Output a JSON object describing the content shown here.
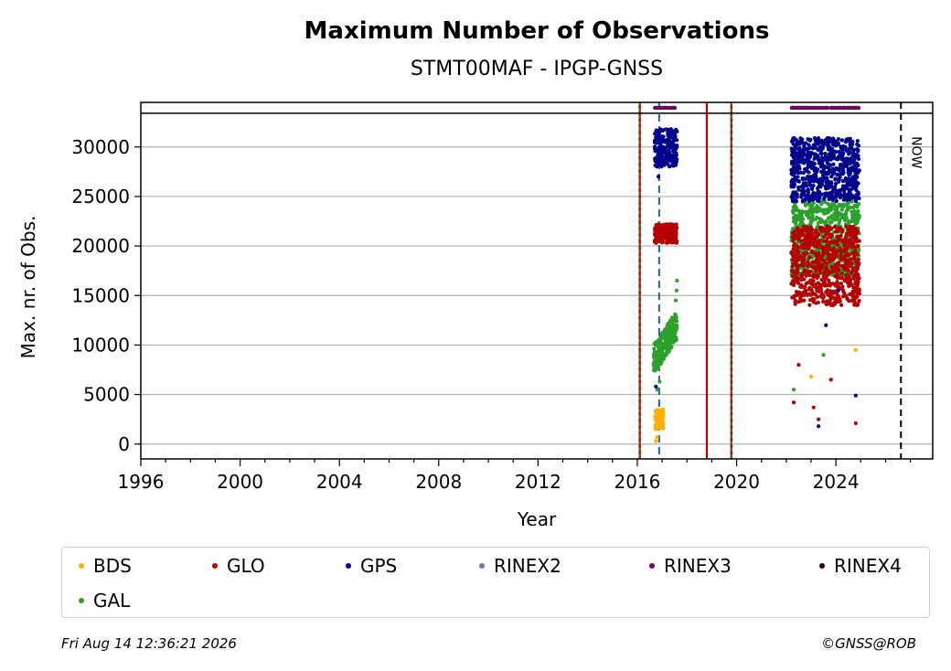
{
  "chart_data": {
    "type": "scatter",
    "title": "Maximum Number of Observations",
    "subtitle": "STMT00MAF - IPGP-GNSS",
    "xlabel": "Year",
    "ylabel": "Max. nr. of Obs.",
    "xlim": [
      1996,
      2027.9
    ],
    "ylim": [
      -1500,
      34500
    ],
    "xticks": [
      1996,
      2000,
      2004,
      2008,
      2012,
      2016,
      2020,
      2024
    ],
    "yticks": [
      0,
      5000,
      10000,
      15000,
      20000,
      25000,
      30000
    ],
    "grid": "horizontal",
    "top_band_value": 33400,
    "now_label": "NOW",
    "now_year": 2026.62,
    "vlines": [
      {
        "x": 2016.1,
        "style": "red-green-dotted"
      },
      {
        "x": 2016.88,
        "style": "blue-dashed"
      },
      {
        "x": 2018.8,
        "style": "red-solid"
      },
      {
        "x": 2019.79,
        "style": "red-green-dotted"
      },
      {
        "x": 2026.62,
        "style": "black-dashed"
      }
    ],
    "series": [
      {
        "name": "BDS",
        "color": "#ffb000",
        "segments": [
          {
            "x": [
              2016.7,
              2017.05
            ],
            "y": [
              1500,
              3500
            ]
          }
        ],
        "extra": [
          [
            2016.75,
            300
          ],
          [
            2016.8,
            700
          ],
          [
            2023.0,
            6800
          ],
          [
            2024.8,
            9500
          ]
        ]
      },
      {
        "name": "GLO",
        "color": "#b30000",
        "segments": [
          {
            "x": [
              2016.7,
              2017.6
            ],
            "y": [
              20300,
              22200
            ]
          },
          {
            "x": [
              2022.2,
              2024.95
            ],
            "y": [
              14000,
              22000
            ]
          }
        ],
        "extra": [
          [
            2022.3,
            4200
          ],
          [
            2023.1,
            3700
          ],
          [
            2023.3,
            2500
          ],
          [
            2024.8,
            2100
          ],
          [
            2022.5,
            8000
          ],
          [
            2023.8,
            6500
          ]
        ]
      },
      {
        "name": "GPS",
        "color": "#00008b",
        "segments": [
          {
            "x": [
              2016.7,
              2017.6
            ],
            "y": [
              28000,
              31800
            ]
          },
          {
            "x": [
              2022.2,
              2024.95
            ],
            "y": [
              24500,
              30900
            ]
          }
        ],
        "extra": [
          [
            2016.85,
            27000
          ],
          [
            2016.75,
            5800
          ],
          [
            2023.3,
            1800
          ],
          [
            2024.8,
            4900
          ],
          [
            2023.6,
            12000
          ],
          [
            2024.1,
            15500
          ]
        ]
      },
      {
        "name": "RINEX2",
        "color": "#8070b8",
        "segments": [],
        "extra": []
      },
      {
        "name": "RINEX3",
        "color": "#6b0a5c",
        "segments": [
          {
            "x": [
              2016.7,
              2017.55
            ],
            "y": [
              33950,
              33950
            ]
          },
          {
            "x": [
              2022.2,
              2024.95
            ],
            "y": [
              33950,
              33950
            ]
          }
        ],
        "extra": []
      },
      {
        "name": "RINEX4",
        "color": "#2b0019",
        "segments": [],
        "extra": []
      },
      {
        "name": "GAL",
        "color": "#2ca02c",
        "segments": [
          {
            "x": [
              2016.65,
              2017.6
            ],
            "y": [
              7000,
              12500
            ]
          },
          {
            "x": [
              2022.2,
              2024.95
            ],
            "y": [
              17000,
              24500
            ]
          }
        ],
        "extra": [
          [
            2016.8,
            5500
          ],
          [
            2016.9,
            6300
          ],
          [
            2017.55,
            14500
          ],
          [
            2017.6,
            16500
          ],
          [
            2017.58,
            15500
          ],
          [
            2022.3,
            5500
          ],
          [
            2023.5,
            9000
          ]
        ]
      }
    ]
  },
  "footer": {
    "timestamp": "Fri Aug 14 12:36:21 2026",
    "credit": "©GNSS@ROB"
  }
}
